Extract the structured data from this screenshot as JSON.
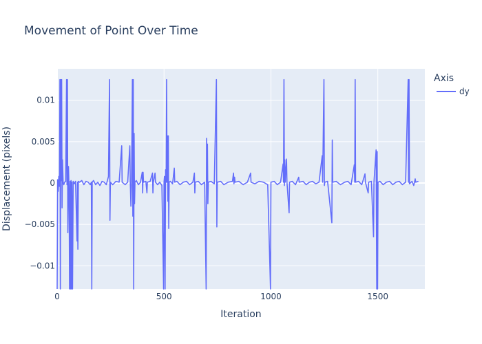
{
  "chart_data": {
    "type": "line",
    "title": "Movement of Point Over Time",
    "xlabel": "Iteration",
    "ylabel": "Displacement (pixels)",
    "xlim": [
      0,
      1720
    ],
    "ylim": [
      -0.0128,
      0.0138
    ],
    "x_ticks": [
      0,
      500,
      1000,
      1500
    ],
    "x_tick_labels": [
      "0",
      "500",
      "1000",
      "1500"
    ],
    "y_ticks": [
      -0.01,
      -0.005,
      0,
      0.005,
      0.01
    ],
    "y_tick_labels": [
      "−0.01",
      "−0.005",
      "0",
      "0.005",
      "0.01"
    ],
    "grid": true,
    "legend_title": "Axis",
    "legend_position": "top-right",
    "series": [
      {
        "name": "dy",
        "color": "#636efa",
        "points": [
          [
            0,
            -0.0128
          ],
          [
            2,
            0.0004
          ],
          [
            5,
            -0.001
          ],
          [
            8,
            0.0008
          ],
          [
            11,
            -0.0004
          ],
          [
            13,
            0.0125
          ],
          [
            15,
            -0.0128
          ],
          [
            17,
            0.0125
          ],
          [
            19,
            0.0003
          ],
          [
            21,
            0.0125
          ],
          [
            23,
            -0.003
          ],
          [
            25,
            0.0028
          ],
          [
            28,
            0.0001
          ],
          [
            31,
            -0.0002
          ],
          [
            35,
            0.0001
          ],
          [
            40,
            0.0002
          ],
          [
            44,
            0.0125
          ],
          [
            46,
            -0.0002
          ],
          [
            48,
            0.0125
          ],
          [
            50,
            -0.006
          ],
          [
            53,
            0.002
          ],
          [
            56,
            -0.001
          ],
          [
            58,
            -0.0128
          ],
          [
            61,
            0.0002
          ],
          [
            63,
            -0.0128
          ],
          [
            65,
            0.0003
          ],
          [
            67,
            -0.0128
          ],
          [
            69,
            0.0001
          ],
          [
            72,
            -0.0128
          ],
          [
            75,
            0.0002
          ],
          [
            80,
            -0.0001
          ],
          [
            86,
            0.0002
          ],
          [
            93,
            -0.007
          ],
          [
            95,
            0.0001
          ],
          [
            97,
            -0.008
          ],
          [
            99,
            0.0002
          ],
          [
            105,
            0.0001
          ],
          [
            115,
            0.0003
          ],
          [
            125,
            -0.0002
          ],
          [
            135,
            0.0002
          ],
          [
            145,
            0.0001
          ],
          [
            155,
            -0.0002
          ],
          [
            160,
            0.0001
          ],
          [
            162,
            -0.0128
          ],
          [
            164,
            0.0001
          ],
          [
            170,
            0.0003
          ],
          [
            180,
            -0.0002
          ],
          [
            190,
            0.0001
          ],
          [
            200,
            -0.0003
          ],
          [
            210,
            0.0002
          ],
          [
            220,
            0.0001
          ],
          [
            230,
            -0.0002
          ],
          [
            240,
            0.0008
          ],
          [
            245,
            0.0125
          ],
          [
            247,
            -0.0045
          ],
          [
            249,
            0.0001
          ],
          [
            260,
            -0.0002
          ],
          [
            275,
            0.0002
          ],
          [
            290,
            0.0001
          ],
          [
            302,
            0.0045
          ],
          [
            304,
            0.0001
          ],
          [
            318,
            -0.0002
          ],
          [
            330,
            0.0001
          ],
          [
            340,
            0.0045
          ],
          [
            342,
            0.0001
          ],
          [
            345,
            -0.0028
          ],
          [
            348,
            0.0001
          ],
          [
            352,
            0.0125
          ],
          [
            354,
            -0.004
          ],
          [
            356,
            0.0125
          ],
          [
            358,
            -0.0128
          ],
          [
            360,
            0.006
          ],
          [
            362,
            -0.0025
          ],
          [
            364,
            0.0001
          ],
          [
            370,
            0.0003
          ],
          [
            380,
            -0.0002
          ],
          [
            390,
            0.0001
          ],
          [
            398,
            0.0013
          ],
          [
            400,
            -0.0012
          ],
          [
            402,
            0.0013
          ],
          [
            404,
            0.0001
          ],
          [
            415,
            0.0002
          ],
          [
            420,
            -0.0012
          ],
          [
            422,
            0.0001
          ],
          [
            435,
            0.0002
          ],
          [
            446,
            0.0012
          ],
          [
            448,
            -0.0012
          ],
          [
            450,
            0.0001
          ],
          [
            458,
            0.0012
          ],
          [
            460,
            0.0001
          ],
          [
            470,
            -0.0002
          ],
          [
            480,
            0.0001
          ],
          [
            490,
            -0.0003
          ],
          [
            498,
            -0.0128
          ],
          [
            500,
            0.0001
          ],
          [
            502,
            0.0008
          ],
          [
            505,
            -0.0128
          ],
          [
            507,
            0.0016
          ],
          [
            510,
            0.0001
          ],
          [
            512,
            0.0125
          ],
          [
            514,
            0.0001
          ],
          [
            516,
            0.0057
          ],
          [
            518,
            -0.0022
          ],
          [
            520,
            0.0057
          ],
          [
            522,
            -0.0055
          ],
          [
            524,
            0.0001
          ],
          [
            530,
            0.0002
          ],
          [
            540,
            -0.0001
          ],
          [
            548,
            0.0018
          ],
          [
            550,
            0.0001
          ],
          [
            560,
            0.0002
          ],
          [
            575,
            -0.0002
          ],
          [
            590,
            0.0001
          ],
          [
            605,
            0.0002
          ],
          [
            620,
            -0.0002
          ],
          [
            635,
            0.0001
          ],
          [
            642,
            0.0012
          ],
          [
            644,
            -0.0012
          ],
          [
            646,
            0.0001
          ],
          [
            660,
            0.0002
          ],
          [
            675,
            -0.0002
          ],
          [
            690,
            0.0001
          ],
          [
            697,
            -0.0128
          ],
          [
            699,
            0.0054
          ],
          [
            701,
            0.0002
          ],
          [
            703,
            0.0047
          ],
          [
            705,
            -0.0025
          ],
          [
            707,
            0.0001
          ],
          [
            720,
            0.0002
          ],
          [
            735,
            -0.0001
          ],
          [
            745,
            0.0125
          ],
          [
            747,
            -0.0053
          ],
          [
            749,
            0.0001
          ],
          [
            765,
            0.0002
          ],
          [
            780,
            -0.0002
          ],
          [
            800,
            0.0001
          ],
          [
            820,
            0.0002
          ],
          [
            825,
            0.0012
          ],
          [
            827,
            -0.0001
          ],
          [
            830,
            0.0007
          ],
          [
            832,
            0.0001
          ],
          [
            850,
            0.0002
          ],
          [
            870,
            -0.0002
          ],
          [
            890,
            0.0001
          ],
          [
            905,
            0.0012
          ],
          [
            907,
            0.0001
          ],
          [
            925,
            -0.0001
          ],
          [
            945,
            0.0002
          ],
          [
            965,
            0.0001
          ],
          [
            985,
            -0.0002
          ],
          [
            998,
            -0.0128
          ],
          [
            1000,
            0.0001
          ],
          [
            1015,
            0.0002
          ],
          [
            1030,
            -0.0002
          ],
          [
            1045,
            0.0001
          ],
          [
            1057,
            0.0023
          ],
          [
            1059,
            0.0001
          ],
          [
            1061,
            0.0125
          ],
          [
            1063,
            -0.0003
          ],
          [
            1065,
            0.0028
          ],
          [
            1067,
            0.0001
          ],
          [
            1073,
            0.0029
          ],
          [
            1075,
            0.0001
          ],
          [
            1085,
            -0.0036
          ],
          [
            1087,
            0.0001
          ],
          [
            1100,
            0.0002
          ],
          [
            1115,
            -0.0002
          ],
          [
            1130,
            0.0007
          ],
          [
            1132,
            0.0001
          ],
          [
            1150,
            0.0002
          ],
          [
            1165,
            -0.0002
          ],
          [
            1180,
            0.0001
          ],
          [
            1195,
            0.0002
          ],
          [
            1210,
            -0.0001
          ],
          [
            1225,
            0.0001
          ],
          [
            1240,
            0.0033
          ],
          [
            1242,
            0.0001
          ],
          [
            1248,
            0.0125
          ],
          [
            1250,
            -0.0003
          ],
          [
            1252,
            0.0001
          ],
          [
            1265,
            0.0002
          ],
          [
            1285,
            -0.0048
          ],
          [
            1287,
            0.0052
          ],
          [
            1289,
            0.0001
          ],
          [
            1305,
            0.0002
          ],
          [
            1325,
            -0.0002
          ],
          [
            1345,
            0.0001
          ],
          [
            1360,
            0.0002
          ],
          [
            1375,
            -0.0002
          ],
          [
            1390,
            0.0022
          ],
          [
            1392,
            0.0001
          ],
          [
            1394,
            0.0125
          ],
          [
            1396,
            0.0001
          ],
          [
            1410,
            0.0002
          ],
          [
            1425,
            -0.0002
          ],
          [
            1440,
            0.0011
          ],
          [
            1442,
            0.0001
          ],
          [
            1455,
            -0.0012
          ],
          [
            1457,
            0.0001
          ],
          [
            1470,
            0.0002
          ],
          [
            1480,
            -0.0065
          ],
          [
            1482,
            0.0001
          ],
          [
            1492,
            0.004
          ],
          [
            1495,
            -0.0128
          ],
          [
            1497,
            0.0038
          ],
          [
            1499,
            -0.0128
          ],
          [
            1501,
            0.0001
          ],
          [
            1510,
            0.0002
          ],
          [
            1525,
            -0.0002
          ],
          [
            1540,
            0.0001
          ],
          [
            1555,
            0.0002
          ],
          [
            1570,
            -0.0002
          ],
          [
            1585,
            0.0001
          ],
          [
            1600,
            0.0002
          ],
          [
            1615,
            -0.0002
          ],
          [
            1630,
            0.0001
          ],
          [
            1642,
            0.0125
          ],
          [
            1644,
            0.0001
          ],
          [
            1646,
            0.0125
          ],
          [
            1648,
            -0.0001
          ],
          [
            1660,
            0.0002
          ],
          [
            1668,
            -0.0003
          ],
          [
            1675,
            0.0005
          ],
          [
            1677,
            0.0001
          ],
          [
            1690,
            0.0002
          ]
        ]
      }
    ]
  }
}
